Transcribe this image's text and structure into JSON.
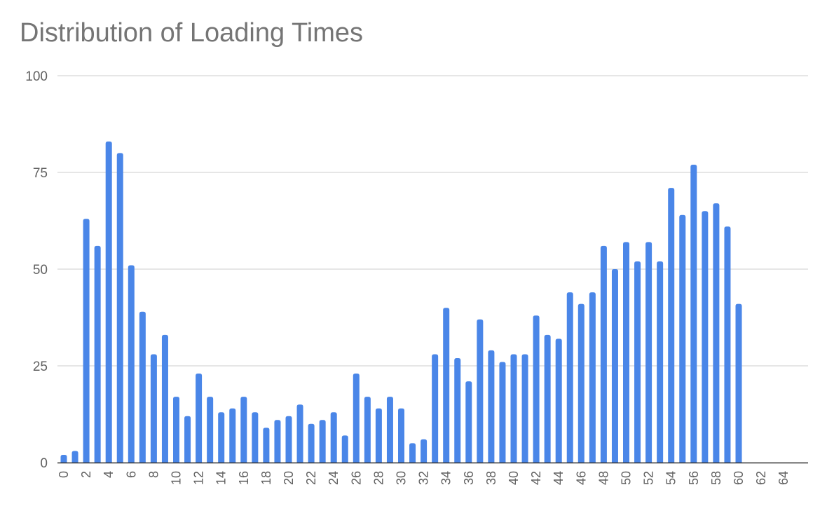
{
  "chart_data": {
    "type": "bar",
    "title": "Distribution of Loading Times",
    "xlabel": "",
    "ylabel": "",
    "x": [
      0,
      1,
      2,
      3,
      4,
      5,
      6,
      7,
      8,
      9,
      10,
      11,
      12,
      13,
      14,
      15,
      16,
      17,
      18,
      19,
      20,
      21,
      22,
      23,
      24,
      25,
      26,
      27,
      28,
      29,
      30,
      31,
      32,
      33,
      34,
      35,
      36,
      37,
      38,
      39,
      40,
      41,
      42,
      43,
      44,
      45,
      46,
      47,
      48,
      49,
      50,
      51,
      52,
      53,
      54,
      55,
      56,
      57,
      58,
      59,
      60,
      61,
      62,
      63,
      64,
      65
    ],
    "values": [
      2,
      3,
      63,
      56,
      83,
      80,
      51,
      39,
      28,
      33,
      17,
      12,
      23,
      17,
      13,
      14,
      17,
      13,
      9,
      11,
      12,
      15,
      10,
      11,
      13,
      7,
      23,
      17,
      14,
      17,
      14,
      5,
      6,
      28,
      40,
      27,
      21,
      37,
      29,
      26,
      28,
      28,
      38,
      33,
      32,
      44,
      41,
      44,
      56,
      50,
      57,
      52,
      57,
      52,
      71,
      64,
      77,
      65,
      67,
      61,
      41,
      0,
      0,
      0,
      0,
      0
    ],
    "xticks": [
      "0",
      "2",
      "4",
      "6",
      "8",
      "10",
      "12",
      "14",
      "16",
      "18",
      "20",
      "22",
      "24",
      "26",
      "28",
      "30",
      "32",
      "34",
      "36",
      "38",
      "40",
      "42",
      "44",
      "46",
      "48",
      "50",
      "52",
      "54",
      "56",
      "58",
      "60",
      "62",
      "64"
    ],
    "yticks": [
      "0",
      "25",
      "50",
      "75",
      "100"
    ],
    "ylim": [
      0,
      100
    ],
    "bar_color": "#4a86e8",
    "grid": true,
    "legend": "none"
  }
}
